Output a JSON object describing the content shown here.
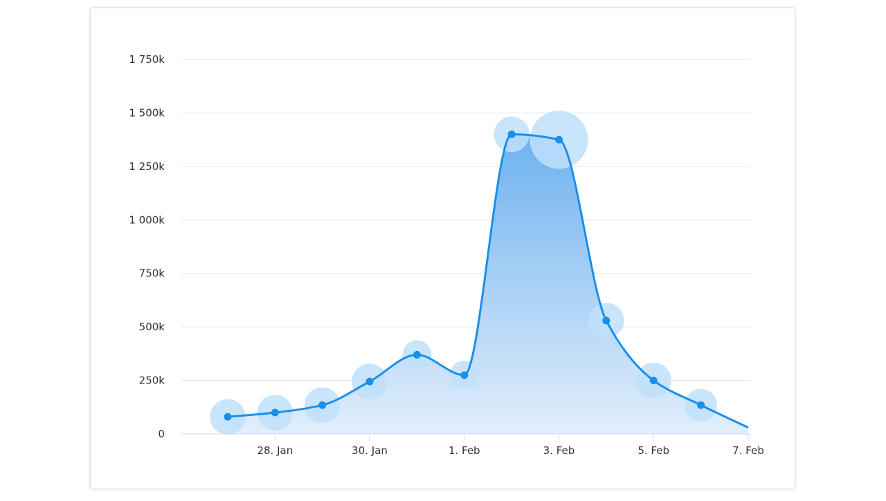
{
  "chart_data": {
    "type": "area",
    "title": "",
    "xlabel": "",
    "ylabel": "",
    "x": [
      "2025-01-27",
      "2025-01-28",
      "2025-01-29",
      "2025-01-30",
      "2025-01-31",
      "2025-02-01",
      "2025-02-02",
      "2025-02-03",
      "2025-02-04",
      "2025-02-05",
      "2025-02-06",
      "2025-02-07"
    ],
    "values": [
      80000,
      100000,
      135000,
      245000,
      370000,
      275000,
      1400000,
      1375000,
      530000,
      250000,
      135000,
      30000
    ],
    "bubble_sizes": [
      3,
      3,
      3,
      3,
      2,
      2,
      3,
      8,
      3,
      3,
      2.5,
      null
    ],
    "markers_shown": [
      true,
      true,
      true,
      true,
      true,
      true,
      true,
      true,
      true,
      true,
      true,
      false
    ],
    "ylim": [
      0,
      1750000
    ],
    "yticks": [
      {
        "value": 0,
        "label": "0"
      },
      {
        "value": 250000,
        "label": "250k"
      },
      {
        "value": 500000,
        "label": "500k"
      },
      {
        "value": 750000,
        "label": "750k"
      },
      {
        "value": 1000000,
        "label": "1 000k"
      },
      {
        "value": 1250000,
        "label": "1 250k"
      },
      {
        "value": 1500000,
        "label": "1 500k"
      },
      {
        "value": 1750000,
        "label": "1 750k"
      }
    ],
    "xticks": [
      {
        "value": "2025-01-28",
        "label": "28. Jan"
      },
      {
        "value": "2025-01-30",
        "label": "30. Jan"
      },
      {
        "value": "2025-02-01",
        "label": "1. Feb"
      },
      {
        "value": "2025-02-03",
        "label": "3. Feb"
      },
      {
        "value": "2025-02-05",
        "label": "5. Feb"
      },
      {
        "value": "2025-02-07",
        "label": "7. Feb"
      }
    ],
    "grid": true,
    "legend": "none",
    "colors": {
      "line": "#1a8fe8",
      "area_top": "#6eb2f0",
      "area_bottom": "#e2eefb",
      "bubble": "#bfe0fa",
      "grid": "#e6e6e6",
      "axis": "#ccd6eb"
    }
  }
}
